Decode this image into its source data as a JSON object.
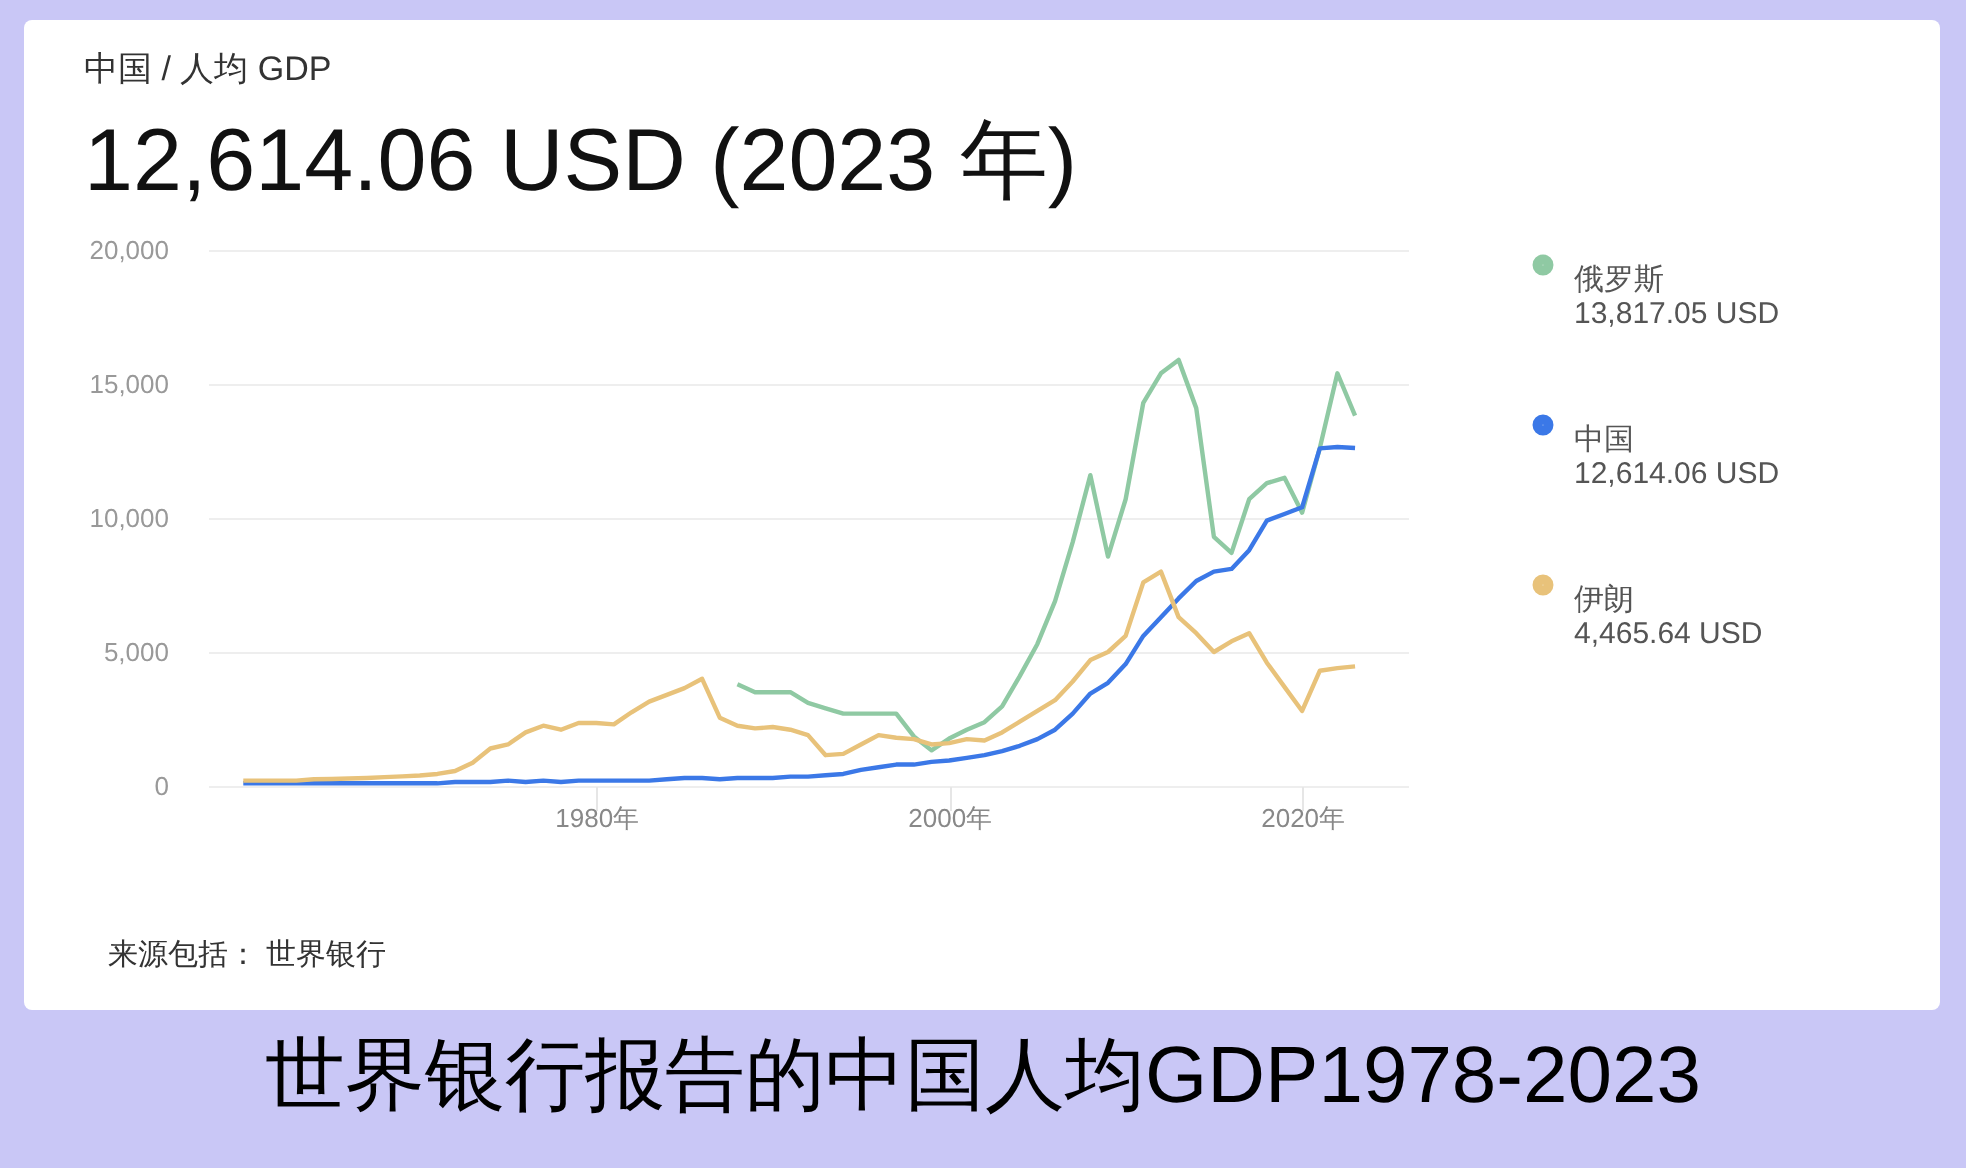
{
  "chart_data": {
    "type": "line",
    "title": "中国 / 人均 GDP",
    "subtitle": "12,614.06 USD (2023 年)",
    "x": [
      1960,
      1961,
      1962,
      1963,
      1964,
      1965,
      1966,
      1967,
      1968,
      1969,
      1970,
      1971,
      1972,
      1973,
      1974,
      1975,
      1976,
      1977,
      1978,
      1979,
      1980,
      1981,
      1982,
      1983,
      1984,
      1985,
      1986,
      1987,
      1988,
      1989,
      1990,
      1991,
      1992,
      1993,
      1994,
      1995,
      1996,
      1997,
      1998,
      1999,
      2000,
      2001,
      2002,
      2003,
      2004,
      2005,
      2006,
      2007,
      2008,
      2009,
      2010,
      2011,
      2012,
      2013,
      2014,
      2015,
      2016,
      2017,
      2018,
      2019,
      2020,
      2021,
      2022,
      2023
    ],
    "series": [
      {
        "name": "俄罗斯",
        "color": "#8fc9a3",
        "x": [
          1988,
          1989,
          1990,
          1991,
          1992,
          1993,
          1994,
          1995,
          1996,
          1997,
          1998,
          1999,
          2000,
          2001,
          2002,
          2003,
          2004,
          2005,
          2006,
          2007,
          2008,
          2009,
          2010,
          2011,
          2012,
          2013,
          2014,
          2015,
          2016,
          2017,
          2018,
          2019,
          2020,
          2021,
          2022,
          2023
        ],
        "values": [
          3800,
          3500,
          3500,
          3500,
          3100,
          2900,
          2700,
          2700,
          2700,
          2700,
          1850,
          1330,
          1770,
          2100,
          2380,
          2975,
          4100,
          5300,
          6900,
          9100,
          11600,
          8560,
          10700,
          14300,
          15400,
          15900,
          14100,
          9300,
          8700,
          10700,
          11300,
          11500,
          10200,
          12600,
          15400,
          13817.05
        ]
      },
      {
        "name": "中国",
        "color": "#3b78e7",
        "values": [
          100,
          100,
          100,
          100,
          100,
          100,
          100,
          100,
          100,
          100,
          100,
          100,
          150,
          150,
          150,
          200,
          150,
          200,
          150,
          200,
          200,
          200,
          200,
          200,
          250,
          300,
          300,
          250,
          300,
          300,
          300,
          350,
          350,
          400,
          450,
          600,
          700,
          800,
          800,
          900,
          950,
          1050,
          1150,
          1300,
          1500,
          1750,
          2100,
          2700,
          3450,
          3850,
          4550,
          5600,
          6300,
          7000,
          7650,
          8000,
          8100,
          8800,
          9900,
          10150,
          10400,
          12600,
          12650,
          12614.06
        ]
      },
      {
        "name": "伊朗",
        "color": "#e8c27a",
        "values": [
          200,
          200,
          200,
          200,
          250,
          260,
          280,
          300,
          330,
          360,
          390,
          450,
          560,
          870,
          1400,
          1550,
          2000,
          2250,
          2100,
          2350,
          2350,
          2300,
          2750,
          3150,
          3400,
          3650,
          4000,
          2550,
          2250,
          2150,
          2200,
          2100,
          1900,
          1150,
          1200,
          1550,
          1900,
          1800,
          1750,
          1550,
          1600,
          1750,
          1700,
          2000,
          2400,
          2800,
          3200,
          3900,
          4700,
          5000,
          5600,
          7600,
          8000,
          6300,
          5700,
          5000,
          5400,
          5700,
          4600,
          3700,
          2800,
          4300,
          4400,
          4465.64
        ]
      }
    ],
    "xlim": [
      1958,
      2026
    ],
    "xticks": [
      {
        "value": 1980,
        "label": "1980年"
      },
      {
        "value": 2000,
        "label": "2000年"
      },
      {
        "value": 2020,
        "label": "2020年"
      }
    ],
    "ylim": [
      0,
      20000
    ],
    "yticks": [
      0,
      {
        "value": 5000,
        "label": "5,000"
      },
      {
        "value": 10000,
        "label": "10,000"
      },
      {
        "value": 15000,
        "label": "15,000"
      },
      {
        "value": 20000,
        "label": "20,000"
      }
    ],
    "grid": "y",
    "legend": "right",
    "marker": "none",
    "line_style": "solid",
    "annotations": [
      "13,817.05 USD",
      "12,614.06 USD",
      "4,465.64 USD",
      "来源包括： 世界银行",
      "世界银行报告的中国人均GDP1978-2023"
    ]
  }
}
